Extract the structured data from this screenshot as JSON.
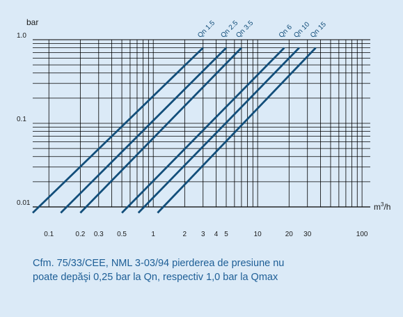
{
  "colors": {
    "background": "#dbeaf7",
    "grid": "#000000",
    "curve": "#124e7a",
    "caption": "#1d5e96",
    "axis_text": "#1a1a1a"
  },
  "chart_data": {
    "type": "line",
    "title": "",
    "ylabel": "bar",
    "xlabel_base": "m",
    "xlabel_sup": "3",
    "xlabel_tail": "/h",
    "x_scale": "log",
    "y_scale": "log",
    "xlim": [
      0.07,
      120
    ],
    "ylim": [
      0.01,
      1.0
    ],
    "grid": true,
    "x_ticks": [
      {
        "value": 0.1,
        "label": "0.1"
      },
      {
        "value": 0.2,
        "label": "0.2"
      },
      {
        "value": 0.3,
        "label": "0.3"
      },
      {
        "value": 0.5,
        "label": "0.5"
      },
      {
        "value": 1,
        "label": "1"
      },
      {
        "value": 2,
        "label": "2"
      },
      {
        "value": 3,
        "label": "3"
      },
      {
        "value": 4,
        "label": "4"
      },
      {
        "value": 5,
        "label": "5"
      },
      {
        "value": 10,
        "label": "10"
      },
      {
        "value": 20,
        "label": "20"
      },
      {
        "value": 30,
        "label": "30"
      },
      {
        "value": 100,
        "label": "100"
      }
    ],
    "y_ticks": [
      {
        "value": 0.01,
        "label": "0.01"
      },
      {
        "value": 0.1,
        "label": "0.1"
      },
      {
        "value": 1.0,
        "label": "1.0"
      }
    ],
    "series": [
      {
        "name": "Qn 1.5",
        "x": [
          0.07,
          3.0
        ],
        "y": [
          0.0085,
          0.8
        ]
      },
      {
        "name": "Qn 2.5",
        "x": [
          0.13,
          5.0
        ],
        "y": [
          0.0085,
          0.8
        ]
      },
      {
        "name": "Qn 3.5",
        "x": [
          0.2,
          7.0
        ],
        "y": [
          0.0085,
          0.8
        ]
      },
      {
        "name": "Qn 6",
        "x": [
          0.5,
          18.0
        ],
        "y": [
          0.0085,
          0.8
        ]
      },
      {
        "name": "Qn 10",
        "x": [
          0.72,
          25.0
        ],
        "y": [
          0.0085,
          0.8
        ]
      },
      {
        "name": "Qn 15",
        "x": [
          1.1,
          36.0
        ],
        "y": [
          0.0085,
          0.8
        ]
      }
    ]
  },
  "caption": {
    "line1": "Cfm. 75/33/CEE, NML 3-03/94 pierderea de presiune nu",
    "line2": "poate depăşi 0,25 bar la Qn, respectiv 1,0 bar la Qmax"
  }
}
